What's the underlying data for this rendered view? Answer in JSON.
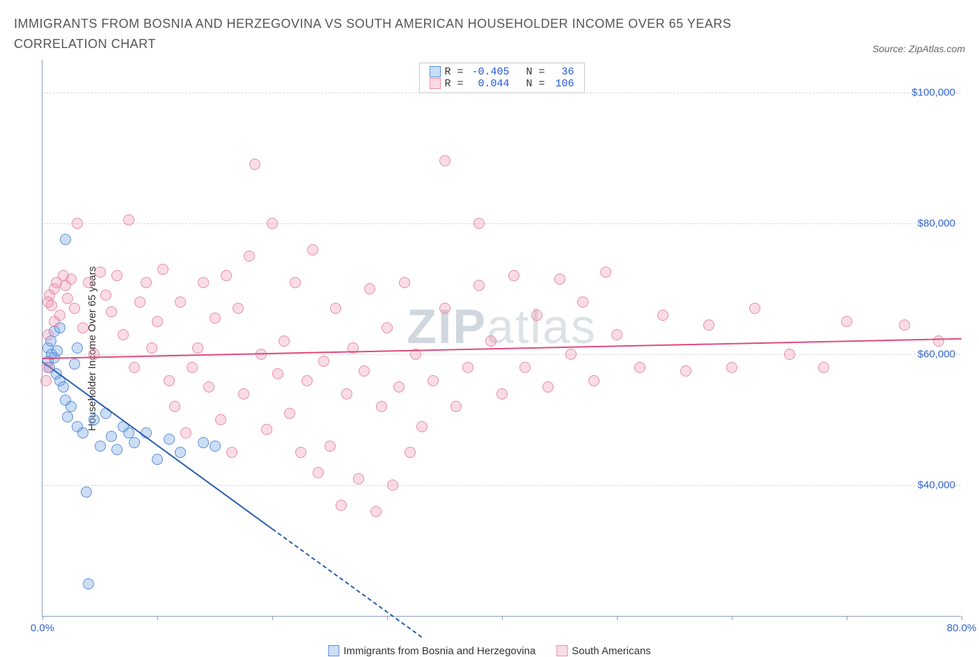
{
  "title": "IMMIGRANTS FROM BOSNIA AND HERZEGOVINA VS SOUTH AMERICAN HOUSEHOLDER INCOME OVER 65 YEARS CORRELATION CHART",
  "source": "Source: ZipAtlas.com",
  "ylabel": "Householder Income Over 65 years",
  "watermark_bold": "ZIP",
  "watermark_rest": "atlas",
  "chart": {
    "type": "scatter",
    "xlim": [
      0,
      80
    ],
    "ylim": [
      20000,
      105000
    ],
    "xtick_positions": [
      0,
      10,
      20,
      30,
      40,
      50,
      60,
      70,
      80
    ],
    "xtick_labels": {
      "0": "0.0%",
      "80": "80.0%"
    },
    "ytick_positions": [
      40000,
      60000,
      80000,
      100000
    ],
    "ytick_labels": [
      "$40,000",
      "$60,000",
      "$80,000",
      "$100,000"
    ],
    "grid_color": "#d8d8d8",
    "axis_color": "#8aa0c0",
    "tick_label_color": "#3366cc",
    "background_color": "#ffffff",
    "marker_radius": 8,
    "marker_stroke_width": 1.5,
    "series": [
      {
        "name": "Immigrants from Bosnia and Herzegovina",
        "fill_color": "rgba(110,160,230,0.35)",
        "stroke_color": "#5b8fd6",
        "line_color": "#2a5db0",
        "R": "-0.405",
        "N": "36",
        "regression": {
          "x1": 0,
          "y1": 59000,
          "x2": 20,
          "y2": 33500,
          "dashed_extension": {
            "x2": 33,
            "y2": 17000
          }
        },
        "points": [
          [
            0.5,
            59000
          ],
          [
            0.5,
            61000
          ],
          [
            0.6,
            58000
          ],
          [
            0.7,
            62000
          ],
          [
            0.8,
            60000
          ],
          [
            1,
            63500
          ],
          [
            1,
            59500
          ],
          [
            1.2,
            57000
          ],
          [
            1.3,
            60500
          ],
          [
            1.5,
            64000
          ],
          [
            1.5,
            56000
          ],
          [
            1.8,
            55000
          ],
          [
            2,
            77500
          ],
          [
            2,
            53000
          ],
          [
            2.2,
            50500
          ],
          [
            2.5,
            52000
          ],
          [
            2.8,
            58500
          ],
          [
            3,
            49000
          ],
          [
            3,
            61000
          ],
          [
            3.5,
            48000
          ],
          [
            3.8,
            39000
          ],
          [
            4,
            25000
          ],
          [
            4.5,
            50000
          ],
          [
            5,
            46000
          ],
          [
            5.5,
            51000
          ],
          [
            6,
            47500
          ],
          [
            6.5,
            45500
          ],
          [
            7,
            49000
          ],
          [
            7.5,
            48000
          ],
          [
            8,
            46500
          ],
          [
            9,
            48000
          ],
          [
            10,
            44000
          ],
          [
            11,
            47000
          ],
          [
            12,
            45000
          ],
          [
            14,
            46500
          ],
          [
            15,
            46000
          ]
        ]
      },
      {
        "name": "South Americans",
        "fill_color": "rgba(240,140,170,0.30)",
        "stroke_color": "#e88ca8",
        "line_color": "#e04a7a",
        "R": "0.044",
        "N": "106",
        "regression": {
          "x1": 0,
          "y1": 59500,
          "x2": 80,
          "y2": 62500
        },
        "points": [
          [
            0.3,
            56000
          ],
          [
            0.4,
            58000
          ],
          [
            0.5,
            63000
          ],
          [
            0.5,
            68000
          ],
          [
            0.6,
            69000
          ],
          [
            0.8,
            67500
          ],
          [
            1,
            70000
          ],
          [
            1,
            65000
          ],
          [
            1.2,
            71000
          ],
          [
            1.5,
            66000
          ],
          [
            1.8,
            72000
          ],
          [
            2,
            70500
          ],
          [
            2.2,
            68500
          ],
          [
            2.5,
            71500
          ],
          [
            2.8,
            67000
          ],
          [
            3,
            80000
          ],
          [
            3.5,
            64000
          ],
          [
            4,
            71000
          ],
          [
            4.5,
            60000
          ],
          [
            5,
            72500
          ],
          [
            5.5,
            69000
          ],
          [
            6,
            66500
          ],
          [
            6.5,
            72000
          ],
          [
            7,
            63000
          ],
          [
            7.5,
            80500
          ],
          [
            8,
            58000
          ],
          [
            8.5,
            68000
          ],
          [
            9,
            71000
          ],
          [
            9.5,
            61000
          ],
          [
            10,
            65000
          ],
          [
            10.5,
            73000
          ],
          [
            11,
            56000
          ],
          [
            11.5,
            52000
          ],
          [
            12,
            68000
          ],
          [
            12.5,
            48000
          ],
          [
            13,
            58000
          ],
          [
            13.5,
            61000
          ],
          [
            14,
            71000
          ],
          [
            14.5,
            55000
          ],
          [
            15,
            65500
          ],
          [
            15.5,
            50000
          ],
          [
            16,
            72000
          ],
          [
            16.5,
            45000
          ],
          [
            17,
            67000
          ],
          [
            17.5,
            54000
          ],
          [
            18,
            75000
          ],
          [
            18.5,
            89000
          ],
          [
            19,
            60000
          ],
          [
            19.5,
            48500
          ],
          [
            20,
            80000
          ],
          [
            20.5,
            57000
          ],
          [
            21,
            62000
          ],
          [
            21.5,
            51000
          ],
          [
            22,
            71000
          ],
          [
            22.5,
            45000
          ],
          [
            23,
            56000
          ],
          [
            23.5,
            76000
          ],
          [
            24,
            42000
          ],
          [
            24.5,
            59000
          ],
          [
            25,
            46000
          ],
          [
            25.5,
            67000
          ],
          [
            26,
            37000
          ],
          [
            26.5,
            54000
          ],
          [
            27,
            61000
          ],
          [
            27.5,
            41000
          ],
          [
            28,
            57500
          ],
          [
            28.5,
            70000
          ],
          [
            29,
            36000
          ],
          [
            29.5,
            52000
          ],
          [
            30,
            64000
          ],
          [
            30.5,
            40000
          ],
          [
            31,
            55000
          ],
          [
            31.5,
            71000
          ],
          [
            32,
            45000
          ],
          [
            32.5,
            60000
          ],
          [
            33,
            49000
          ],
          [
            34,
            56000
          ],
          [
            35,
            89500
          ],
          [
            35,
            67000
          ],
          [
            36,
            52000
          ],
          [
            37,
            58000
          ],
          [
            38,
            80000
          ],
          [
            38,
            70500
          ],
          [
            39,
            62000
          ],
          [
            40,
            54000
          ],
          [
            41,
            72000
          ],
          [
            42,
            58000
          ],
          [
            43,
            66000
          ],
          [
            44,
            55000
          ],
          [
            45,
            71500
          ],
          [
            46,
            60000
          ],
          [
            47,
            68000
          ],
          [
            48,
            56000
          ],
          [
            49,
            72500
          ],
          [
            50,
            63000
          ],
          [
            52,
            58000
          ],
          [
            54,
            66000
          ],
          [
            56,
            57500
          ],
          [
            58,
            64500
          ],
          [
            60,
            58000
          ],
          [
            62,
            67000
          ],
          [
            65,
            60000
          ],
          [
            68,
            58000
          ],
          [
            70,
            65000
          ],
          [
            75,
            64500
          ],
          [
            78,
            62000
          ]
        ]
      }
    ]
  }
}
